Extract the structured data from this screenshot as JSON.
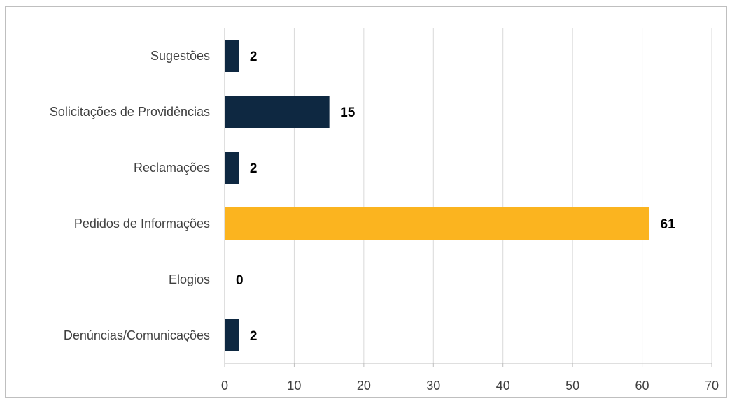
{
  "chart_data": {
    "type": "bar",
    "orientation": "horizontal",
    "title": "",
    "xlabel": "",
    "ylabel": "",
    "categories": [
      "Sugestões",
      "Solicitações de Providências",
      "Reclamações",
      "Pedidos de Informações",
      "Elogios",
      "Denúncias/Comunicações"
    ],
    "values": [
      2,
      15,
      2,
      61,
      0,
      2
    ],
    "highlight_index": 3,
    "xlim": [
      0,
      70
    ],
    "xticks": [
      "0",
      "10",
      "20",
      "30",
      "40",
      "50",
      "60",
      "70"
    ],
    "colors": {
      "bar": "#0e2841",
      "highlight": "#fbb41f",
      "grid": "#d9d9d9",
      "axis": "#bfbfbf"
    },
    "grid": true,
    "legend": "none"
  }
}
